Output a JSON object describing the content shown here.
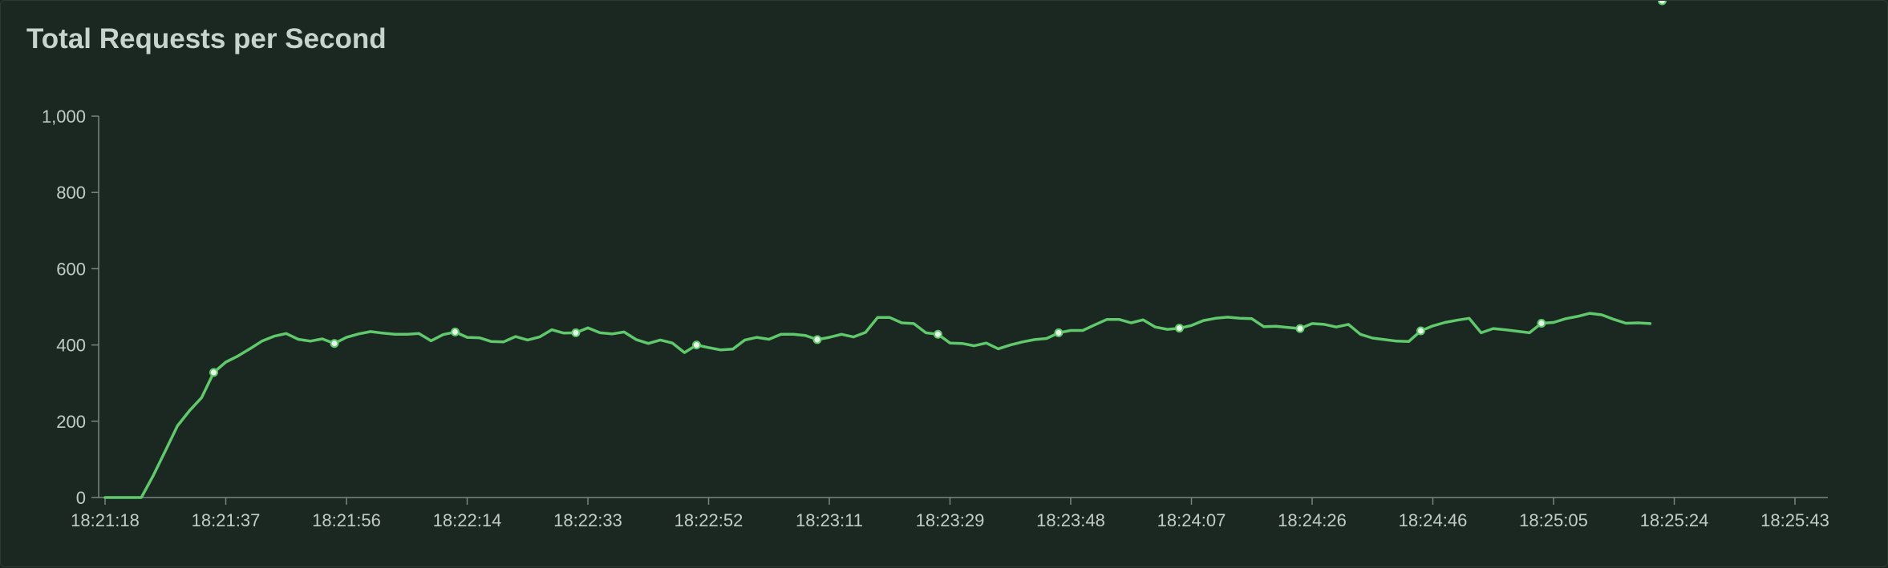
{
  "panel": {
    "title": "Total Requests per Second"
  },
  "colors": {
    "background": "#1b2822",
    "axis": "#7b857f",
    "text": "#c3cbc6",
    "line": "#5fc96b",
    "marker_fill": "#e8f5e9"
  },
  "chart_data": {
    "type": "line",
    "title": "Total Requests per Second",
    "xlabel": "",
    "ylabel": "",
    "ylim": [
      0,
      1000
    ],
    "yticks": [
      0,
      200,
      400,
      600,
      800,
      1000
    ],
    "ytick_labels": [
      "0",
      "200",
      "400",
      "600",
      "800",
      "1,000"
    ],
    "xticks": [
      "18:21:18",
      "18:21:37",
      "18:21:56",
      "18:22:14",
      "18:22:33",
      "18:22:52",
      "18:23:11",
      "18:23:29",
      "18:23:48",
      "18:24:07",
      "18:24:26",
      "18:24:46",
      "18:25:05",
      "18:25:24",
      "18:25:43"
    ],
    "grid": false,
    "legend": "none",
    "series": [
      {
        "values": [
          0,
          0,
          0,
          0,
          58,
          123,
          188,
          228,
          262,
          328,
          355,
          371,
          390,
          410,
          423,
          430,
          415,
          410,
          416,
          404,
          420,
          429,
          435,
          431,
          428,
          428,
          430,
          411,
          427,
          434,
          420,
          419,
          409,
          408,
          422,
          413,
          421,
          440,
          431,
          432,
          445,
          432,
          429,
          434,
          414,
          404,
          413,
          405,
          380,
          400,
          393,
          387,
          389,
          413,
          420,
          415,
          428,
          428,
          425,
          414,
          420,
          428,
          421,
          433,
          472,
          472,
          458,
          456,
          432,
          428,
          405,
          404,
          398,
          405,
          390,
          400,
          408,
          414,
          417,
          432,
          438,
          438,
          453,
          467,
          467,
          458,
          466,
          447,
          441,
          444,
          451,
          464,
          470,
          473,
          470,
          469,
          448,
          449,
          446,
          443,
          456,
          454,
          447,
          454,
          428,
          418,
          414,
          410,
          409,
          437,
          450,
          459,
          465,
          470,
          432,
          443,
          440,
          436,
          432,
          457,
          459,
          469,
          475,
          483,
          479,
          467,
          457,
          458,
          456
        ],
        "marked_indices": [
          9,
          19,
          29,
          39,
          49,
          59,
          69,
          79,
          89,
          99,
          109,
          119,
          129
        ]
      }
    ]
  }
}
